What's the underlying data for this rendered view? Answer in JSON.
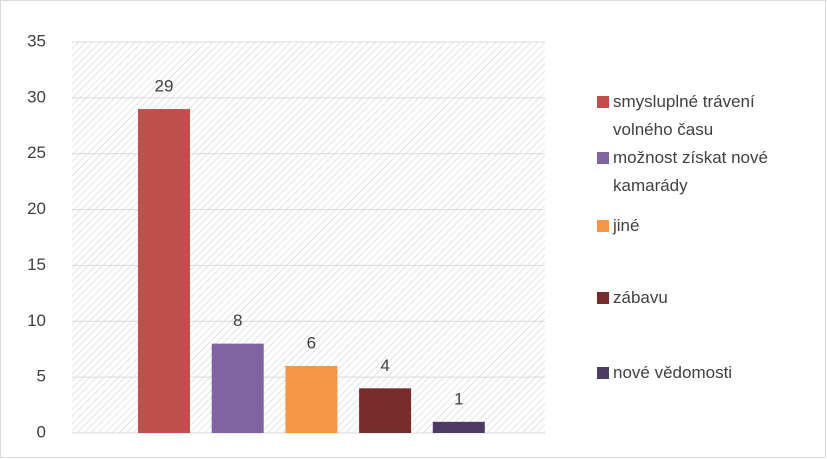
{
  "chart_data": {
    "type": "bar",
    "categories": [
      null
    ],
    "series": [
      {
        "name": "smysluplné trávení volného času",
        "color": "#c0504d",
        "values": [
          29
        ]
      },
      {
        "name": "možnost získat nové kamarády",
        "color": "#8064a2",
        "values": [
          8
        ]
      },
      {
        "name": "jiné",
        "color": "#f79646",
        "values": [
          6
        ]
      },
      {
        "name": "zábavu",
        "color": "#772c2a",
        "values": [
          4
        ]
      },
      {
        "name": "nové vědomosti",
        "color": "#4d3b62",
        "values": [
          1
        ]
      }
    ],
    "ylim": [
      0,
      35
    ],
    "yticks": [
      0,
      5,
      10,
      15,
      20,
      25,
      30,
      35
    ],
    "grid": true,
    "legend": "right"
  }
}
